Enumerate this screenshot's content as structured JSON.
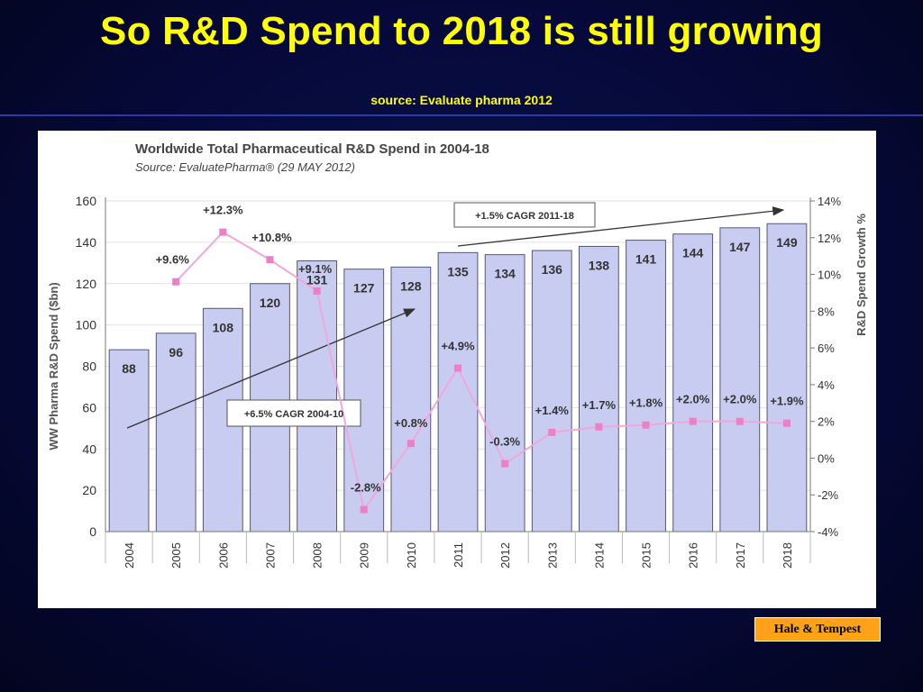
{
  "slide": {
    "title": "So R&D Spend to 2018 is still growing",
    "subtitle": "source: Evaluate pharma  2012",
    "credit": "Hale & Tempest"
  },
  "colors": {
    "background": "#06093a",
    "title": "#ffff00",
    "bar_fill": "#c8ccf0",
    "bar_stroke": "#555577",
    "growth_line": "#f0a8dc",
    "growth_marker": "#ee7ec8",
    "credit_box": "#ffa21a"
  },
  "chart_data": {
    "type": "bar",
    "title": "Worldwide Total Pharmaceutical R&D Spend in 2004-18",
    "subtitle": "Source: EvaluatePharma® (29 MAY 2012)",
    "ylabel": "WW Pharma R&D Spend ($bn)",
    "y2label": "R&D Spend Growth %",
    "ylim": [
      0,
      160
    ],
    "yticks": [
      0,
      20,
      40,
      60,
      80,
      100,
      120,
      140,
      160
    ],
    "y2lim": [
      -4,
      14
    ],
    "y2ticks": [
      "-4%",
      "-2%",
      "0%",
      "2%",
      "4%",
      "6%",
      "8%",
      "10%",
      "12%",
      "14%"
    ],
    "categories": [
      "2004",
      "2005",
      "2006",
      "2007",
      "2008",
      "2009",
      "2010",
      "2011",
      "2012",
      "2013",
      "2014",
      "2015",
      "2016",
      "2017",
      "2018"
    ],
    "series": [
      {
        "type": "bar",
        "values": [
          88,
          96,
          108,
          120,
          131,
          127,
          128,
          135,
          134,
          136,
          138,
          141,
          144,
          147,
          149
        ],
        "labels": [
          "88",
          "96",
          "108",
          "120",
          "131",
          "127",
          "128",
          "135",
          "134",
          "136",
          "138",
          "141",
          "144",
          "147",
          "149"
        ]
      },
      {
        "type": "line",
        "axis": "secondary",
        "values": [
          null,
          9.6,
          12.3,
          10.8,
          9.1,
          -2.8,
          0.8,
          4.9,
          -0.3,
          1.4,
          1.7,
          1.8,
          2.0,
          2.0,
          1.9
        ],
        "labels": [
          "",
          "+9.6%",
          "+12.3%",
          "+10.8%",
          "+9.1%",
          "-2.8%",
          "+0.8%",
          "+4.9%",
          "-0.3%",
          "+1.4%",
          "+1.7%",
          "+1.8%",
          "+2.0%",
          "+2.0%",
          "+1.9%"
        ]
      }
    ],
    "annotations": [
      {
        "text": "+6.5% CAGR 2004-10",
        "from_category": "2004",
        "to_category": "2010"
      },
      {
        "text": "+1.5% CAGR 2011-18",
        "from_category": "2011",
        "to_category": "2018"
      }
    ],
    "grid": true
  }
}
